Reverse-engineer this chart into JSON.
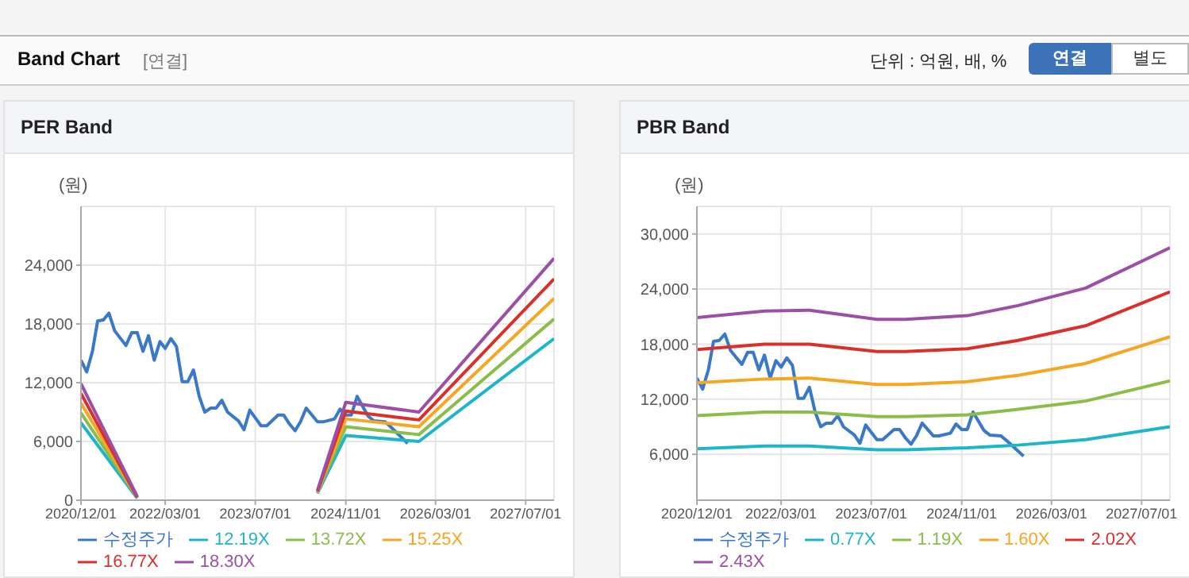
{
  "chart_data": [
    {
      "type": "line",
      "title": "PER Band",
      "ylabel": "(원)",
      "annotations": [
        "Band Chart",
        "[연결]",
        "단위 : 억원, 배, %",
        "연결",
        "별도"
      ],
      "xlim": [
        "2020-12-01",
        "2027-12-01"
      ],
      "xticks": [
        {
          "value": "2020-12-01",
          "label": "2020/12/01"
        },
        {
          "value": "2022-03-01",
          "label": "2022/03/01"
        },
        {
          "value": "2023-07-01",
          "label": "2023/07/01"
        },
        {
          "value": "2024-11-01",
          "label": "2024/11/01"
        },
        {
          "value": "2026-03-01",
          "label": "2026/03/01"
        },
        {
          "value": "2027-07-01",
          "label": "2027/07/01"
        }
      ],
      "ylim": [
        0,
        30000
      ],
      "yticks": [
        0,
        {
          "value": 6000,
          "label": "6,000"
        },
        {
          "value": 12000,
          "label": "12,000"
        },
        {
          "value": 18000,
          "label": "18,000"
        },
        {
          "value": 24000,
          "label": "24,000"
        }
      ],
      "grid": true,
      "legend": "bottom",
      "marker": "none",
      "line_style": "solid",
      "series": [
        {
          "name": "수정주가",
          "color": "#3a78c9",
          "x": [
            "2020-12",
            "2021-01",
            "2021-02",
            "2021-03",
            "2021-04",
            "2021-05",
            "2021-06",
            "2021-08",
            "2021-09",
            "2021-10",
            "2021-11",
            "2021-12",
            "2022-01",
            "2022-02",
            "2022-03",
            "2022-04",
            "2022-05",
            "2022-06",
            "2022-07",
            "2022-08",
            "2022-09",
            "2022-10",
            "2022-11",
            "2022-12",
            "2023-01",
            "2023-02",
            "2023-04",
            "2023-05",
            "2023-06",
            "2023-07",
            "2023-08",
            "2023-09",
            "2023-11",
            "2023-12",
            "2024-01",
            "2024-02",
            "2024-03",
            "2024-04",
            "2024-06",
            "2024-07",
            "2024-09",
            "2024-10",
            "2024-11",
            "2024-12",
            "2025-01",
            "2025-03",
            "2025-04",
            "2025-06",
            "2025-07",
            "2025-10"
          ],
          "values": [
            14300,
            13100,
            15200,
            18300,
            18400,
            19100,
            17300,
            15800,
            17100,
            17100,
            15200,
            16800,
            14300,
            16200,
            15500,
            16500,
            15700,
            12100,
            12100,
            13300,
            10600,
            9000,
            9400,
            9400,
            10200,
            9000,
            8100,
            7200,
            9200,
            8400,
            7600,
            7600,
            8700,
            8700,
            7800,
            7100,
            8000,
            9400,
            8000,
            8000,
            8300,
            9300,
            8700,
            8700,
            10600,
            8600,
            8100,
            8000,
            7500,
            5800
          ]
        },
        {
          "name": "12.19X",
          "color": "#1fb5c9",
          "x": [
            "2020-12",
            "2021-10",
            "2023-01",
            "2024-06",
            "2024-11",
            "2025-12",
            "2027-12"
          ],
          "values": [
            7900,
            200,
            null,
            700,
            6600,
            6000,
            16500
          ]
        },
        {
          "name": "13.72X",
          "color": "#8bbd4a",
          "x": [
            "2020-12",
            "2021-10",
            "2023-01",
            "2024-06",
            "2024-11",
            "2025-12",
            "2027-12"
          ],
          "values": [
            8900,
            300,
            null,
            800,
            7500,
            6700,
            18500
          ]
        },
        {
          "name": "15.25X",
          "color": "#f5a623",
          "x": [
            "2020-12",
            "2021-10",
            "2023-01",
            "2024-06",
            "2024-11",
            "2025-12",
            "2027-12"
          ],
          "values": [
            9900,
            300,
            null,
            800,
            8300,
            7500,
            20600
          ]
        },
        {
          "name": "16.77X",
          "color": "#d9302c",
          "x": [
            "2020-12",
            "2021-10",
            "2023-01",
            "2024-06",
            "2024-11",
            "2025-12",
            "2027-12"
          ],
          "values": [
            10900,
            300,
            null,
            900,
            9100,
            8200,
            22600
          ]
        },
        {
          "name": "18.30X",
          "color": "#9b4fa5",
          "x": [
            "2020-12",
            "2021-10",
            "2023-01",
            "2024-06",
            "2024-11",
            "2025-12",
            "2027-12"
          ],
          "values": [
            11900,
            400,
            null,
            1000,
            10000,
            9000,
            24700
          ]
        }
      ]
    },
    {
      "type": "line",
      "title": "PBR Band",
      "ylabel": "(원)",
      "xlim": [
        "2020-12-01",
        "2027-12-01"
      ],
      "xticks": [
        {
          "value": "2020-12-01",
          "label": "2020/12/01"
        },
        {
          "value": "2022-03-01",
          "label": "2022/03/01"
        },
        {
          "value": "2023-07-01",
          "label": "2023/07/01"
        },
        {
          "value": "2024-11-01",
          "label": "2024/11/01"
        },
        {
          "value": "2026-03-01",
          "label": "2026/03/01"
        },
        {
          "value": "2027-07-01",
          "label": "2027/07/01"
        }
      ],
      "ylim": [
        1000,
        33000
      ],
      "yticks": [
        {
          "value": 6000,
          "label": "6,000"
        },
        {
          "value": 12000,
          "label": "12,000"
        },
        {
          "value": 18000,
          "label": "18,000"
        },
        {
          "value": 24000,
          "label": "24,000"
        },
        {
          "value": 30000,
          "label": "30,000"
        }
      ],
      "grid": true,
      "legend": "bottom",
      "marker": "none",
      "line_style": "solid",
      "series": [
        {
          "name": "수정주가",
          "color": "#3a78c9",
          "x": [
            "2020-12",
            "2021-01",
            "2021-02",
            "2021-03",
            "2021-04",
            "2021-05",
            "2021-06",
            "2021-08",
            "2021-09",
            "2021-10",
            "2021-11",
            "2021-12",
            "2022-01",
            "2022-02",
            "2022-03",
            "2022-04",
            "2022-05",
            "2022-06",
            "2022-07",
            "2022-08",
            "2022-09",
            "2022-10",
            "2022-11",
            "2022-12",
            "2023-01",
            "2023-02",
            "2023-04",
            "2023-05",
            "2023-06",
            "2023-07",
            "2023-08",
            "2023-09",
            "2023-11",
            "2023-12",
            "2024-01",
            "2024-02",
            "2024-03",
            "2024-04",
            "2024-06",
            "2024-07",
            "2024-09",
            "2024-10",
            "2024-11",
            "2024-12",
            "2025-01",
            "2025-03",
            "2025-04",
            "2025-06",
            "2025-07",
            "2025-10"
          ],
          "values": [
            14300,
            13100,
            15200,
            18300,
            18400,
            19100,
            17300,
            15800,
            17100,
            17100,
            15200,
            16800,
            14300,
            16200,
            15500,
            16500,
            15700,
            12100,
            12100,
            13300,
            10600,
            9000,
            9400,
            9400,
            10200,
            9000,
            8100,
            7200,
            9200,
            8400,
            7600,
            7600,
            8700,
            8700,
            7800,
            7100,
            8000,
            9400,
            8000,
            8000,
            8300,
            9300,
            8700,
            8700,
            10600,
            8600,
            8100,
            8000,
            7500,
            5800
          ]
        },
        {
          "name": "0.77X",
          "color": "#1fb5c9",
          "x": [
            "2020-12",
            "2021-12",
            "2022-08",
            "2023-08",
            "2024-01",
            "2024-12",
            "2025-09",
            "2026-09",
            "2027-12"
          ],
          "values": [
            6600,
            6900,
            6900,
            6500,
            6500,
            6700,
            7000,
            7600,
            9000
          ]
        },
        {
          "name": "1.19X",
          "color": "#8bbd4a",
          "x": [
            "2020-12",
            "2021-12",
            "2022-08",
            "2023-08",
            "2024-01",
            "2024-12",
            "2025-09",
            "2026-09",
            "2027-12"
          ],
          "values": [
            10200,
            10600,
            10600,
            10100,
            10100,
            10300,
            10900,
            11800,
            14000
          ]
        },
        {
          "name": "1.60X",
          "color": "#f5a623",
          "x": [
            "2020-12",
            "2021-12",
            "2022-08",
            "2023-08",
            "2024-01",
            "2024-12",
            "2025-09",
            "2026-09",
            "2027-12"
          ],
          "values": [
            13800,
            14200,
            14300,
            13600,
            13600,
            13900,
            14600,
            15900,
            18800
          ]
        },
        {
          "name": "2.02X",
          "color": "#d9302c",
          "x": [
            "2020-12",
            "2021-12",
            "2022-08",
            "2023-08",
            "2024-01",
            "2024-12",
            "2025-09",
            "2026-09",
            "2027-12"
          ],
          "values": [
            17400,
            18000,
            18000,
            17200,
            17200,
            17500,
            18400,
            20000,
            23700
          ]
        },
        {
          "name": "2.43X",
          "color": "#9b4fa5",
          "x": [
            "2020-12",
            "2021-12",
            "2022-08",
            "2023-08",
            "2024-01",
            "2024-12",
            "2025-09",
            "2026-09",
            "2027-12"
          ],
          "values": [
            20900,
            21600,
            21700,
            20700,
            20700,
            21100,
            22200,
            24100,
            28500
          ]
        }
      ]
    }
  ]
}
